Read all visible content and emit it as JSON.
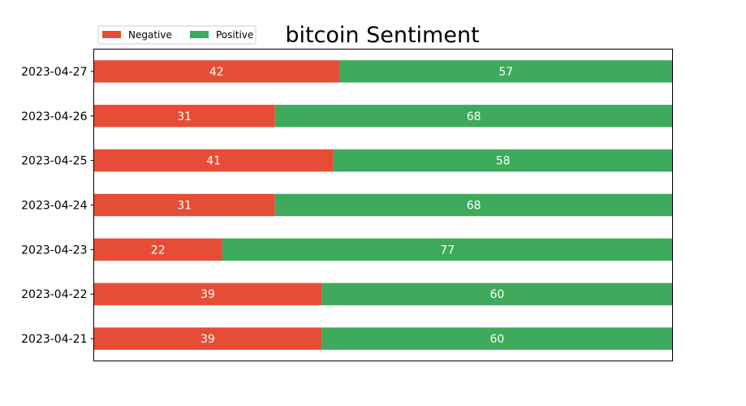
{
  "chart_data": {
    "type": "bar",
    "orientation": "horizontal",
    "stacked": true,
    "title": "bitcoin Sentiment",
    "xlabel": "",
    "ylabel": "",
    "x_ticks_visible": false,
    "categories": [
      "2023-04-27",
      "2023-04-26",
      "2023-04-25",
      "2023-04-24",
      "2023-04-23",
      "2023-04-22",
      "2023-04-21"
    ],
    "series": [
      {
        "name": "Negative",
        "color": "#e64d36",
        "values": [
          42,
          31,
          41,
          31,
          22,
          39,
          39
        ]
      },
      {
        "name": "Positive",
        "color": "#3eaa5c",
        "values": [
          57,
          68,
          58,
          68,
          77,
          60,
          60
        ]
      }
    ],
    "grid": false,
    "legend_position": "top-left"
  }
}
